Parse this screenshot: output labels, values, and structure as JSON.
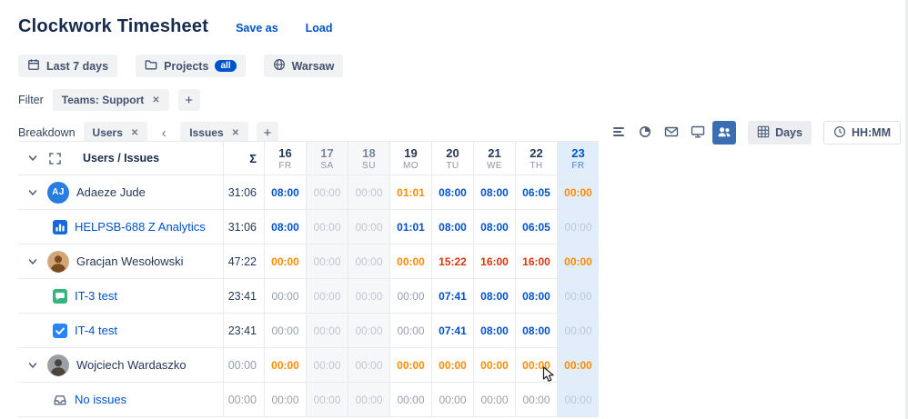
{
  "app": {
    "title": "Clockwork Timesheet",
    "save_as": "Save as",
    "load": "Load"
  },
  "toolbar": {
    "date_range": {
      "label": "Last 7 days",
      "icon": "calendar-icon"
    },
    "projects": {
      "label": "Projects",
      "badge": "all",
      "icon": "folder-icon"
    },
    "location": {
      "label": "Warsaw",
      "icon": "globe-icon"
    }
  },
  "filter": {
    "label": "Filter",
    "chips": [
      {
        "label": "Teams: Support"
      }
    ]
  },
  "breakdown": {
    "label": "Breakdown",
    "chips": [
      {
        "label": "Users"
      },
      {
        "label": "Issues"
      }
    ]
  },
  "view_controls": {
    "toggles": [
      {
        "name": "rows-view-icon",
        "active": false
      },
      {
        "name": "pie-chart-icon",
        "active": false
      },
      {
        "name": "envelope-icon",
        "active": false
      },
      {
        "name": "monitor-icon",
        "active": false
      },
      {
        "name": "people-view-icon",
        "active": true
      }
    ],
    "unit_button": {
      "label": "Days",
      "icon": "grid-icon"
    },
    "format_button": {
      "label": "HH:MM",
      "icon": "clock-icon"
    }
  },
  "table": {
    "corner": {
      "title": "Users / Issues",
      "sum": "Σ"
    },
    "days": [
      {
        "num": "16",
        "dow": "FR",
        "type": "weekday"
      },
      {
        "num": "17",
        "dow": "SA",
        "type": "weekend"
      },
      {
        "num": "18",
        "dow": "SU",
        "type": "weekend"
      },
      {
        "num": "19",
        "dow": "MO",
        "type": "weekday"
      },
      {
        "num": "20",
        "dow": "TU",
        "type": "weekday"
      },
      {
        "num": "21",
        "dow": "WE",
        "type": "weekday"
      },
      {
        "num": "22",
        "dow": "TH",
        "type": "weekday"
      },
      {
        "num": "23",
        "dow": "FR",
        "type": "today"
      }
    ],
    "rows": [
      {
        "kind": "user",
        "name": "Adaeze Jude",
        "avatar": {
          "type": "initials",
          "text": "AJ",
          "bg": "#2a7de0"
        },
        "sum": "31:06",
        "sum_style": "dark",
        "cells": [
          {
            "v": "08:00",
            "s": "blue"
          },
          {
            "v": "00:00",
            "s": "mute"
          },
          {
            "v": "00:00",
            "s": "mute"
          },
          {
            "v": "01:01",
            "s": "orange"
          },
          {
            "v": "08:00",
            "s": "blue"
          },
          {
            "v": "08:00",
            "s": "blue"
          },
          {
            "v": "06:05",
            "s": "blue"
          },
          {
            "v": "00:00",
            "s": "orange"
          }
        ]
      },
      {
        "kind": "issue",
        "name": "HELPSB-688 Z Analytics",
        "icon": "analytics-issue-icon",
        "sum": "31:06",
        "sum_style": "dark",
        "cells": [
          {
            "v": "08:00",
            "s": "blue"
          },
          {
            "v": "00:00",
            "s": "mute"
          },
          {
            "v": "00:00",
            "s": "mute"
          },
          {
            "v": "01:01",
            "s": "blue"
          },
          {
            "v": "08:00",
            "s": "blue"
          },
          {
            "v": "08:00",
            "s": "blue"
          },
          {
            "v": "06:05",
            "s": "blue"
          },
          {
            "v": "00:00",
            "s": "mute"
          }
        ]
      },
      {
        "kind": "user",
        "name": "Gracjan Wesołowski",
        "avatar": {
          "type": "photo",
          "bg": "#d2a679",
          "fg": "#7a4a21"
        },
        "sum": "47:22",
        "sum_style": "dark",
        "cells": [
          {
            "v": "00:00",
            "s": "orange"
          },
          {
            "v": "00:00",
            "s": "mute"
          },
          {
            "v": "00:00",
            "s": "mute"
          },
          {
            "v": "00:00",
            "s": "orange"
          },
          {
            "v": "15:22",
            "s": "red"
          },
          {
            "v": "16:00",
            "s": "red"
          },
          {
            "v": "16:00",
            "s": "red"
          },
          {
            "v": "00:00",
            "s": "orange"
          }
        ]
      },
      {
        "kind": "issue",
        "name": "IT-3 test",
        "icon": "comment-issue-icon",
        "sum": "23:41",
        "sum_style": "dark",
        "cells": [
          {
            "v": "00:00",
            "s": "gray"
          },
          {
            "v": "00:00",
            "s": "mute"
          },
          {
            "v": "00:00",
            "s": "mute"
          },
          {
            "v": "00:00",
            "s": "gray"
          },
          {
            "v": "07:41",
            "s": "blue"
          },
          {
            "v": "08:00",
            "s": "blue"
          },
          {
            "v": "08:00",
            "s": "blue"
          },
          {
            "v": "00:00",
            "s": "mute"
          }
        ]
      },
      {
        "kind": "issue",
        "name": "IT-4 test",
        "icon": "task-issue-icon",
        "sum": "23:41",
        "sum_style": "dark",
        "cells": [
          {
            "v": "00:00",
            "s": "gray"
          },
          {
            "v": "00:00",
            "s": "mute"
          },
          {
            "v": "00:00",
            "s": "mute"
          },
          {
            "v": "00:00",
            "s": "gray"
          },
          {
            "v": "07:41",
            "s": "blue"
          },
          {
            "v": "08:00",
            "s": "blue"
          },
          {
            "v": "08:00",
            "s": "blue"
          },
          {
            "v": "00:00",
            "s": "mute"
          }
        ]
      },
      {
        "kind": "user",
        "name": "Wojciech Wardaszko",
        "avatar": {
          "type": "photo",
          "bg": "#9aa0a3",
          "fg": "#4a4440"
        },
        "sum": "00:00",
        "sum_style": "gray",
        "cells": [
          {
            "v": "00:00",
            "s": "orange"
          },
          {
            "v": "00:00",
            "s": "mute"
          },
          {
            "v": "00:00",
            "s": "mute"
          },
          {
            "v": "00:00",
            "s": "orange"
          },
          {
            "v": "00:00",
            "s": "orange"
          },
          {
            "v": "00:00",
            "s": "orange"
          },
          {
            "v": "00:00",
            "s": "orange"
          },
          {
            "v": "00:00",
            "s": "orange"
          }
        ]
      },
      {
        "kind": "issue",
        "name": "No issues",
        "icon": "no-issues-icon",
        "sum": "00:00",
        "sum_style": "gray",
        "cells": [
          {
            "v": "00:00",
            "s": "gray"
          },
          {
            "v": "00:00",
            "s": "mute"
          },
          {
            "v": "00:00",
            "s": "mute"
          },
          {
            "v": "00:00",
            "s": "gray"
          },
          {
            "v": "00:00",
            "s": "gray"
          },
          {
            "v": "00:00",
            "s": "gray"
          },
          {
            "v": "00:00",
            "s": "gray"
          },
          {
            "v": "00:00",
            "s": "mute"
          }
        ]
      }
    ]
  },
  "colors": {
    "accent": "#0052cc",
    "orange": "#ff8b00",
    "red": "#de350b",
    "today_bg": "#e2edfb",
    "weekend_bg": "#f6f7f9",
    "active_toggle_bg": "#3b6db3"
  }
}
